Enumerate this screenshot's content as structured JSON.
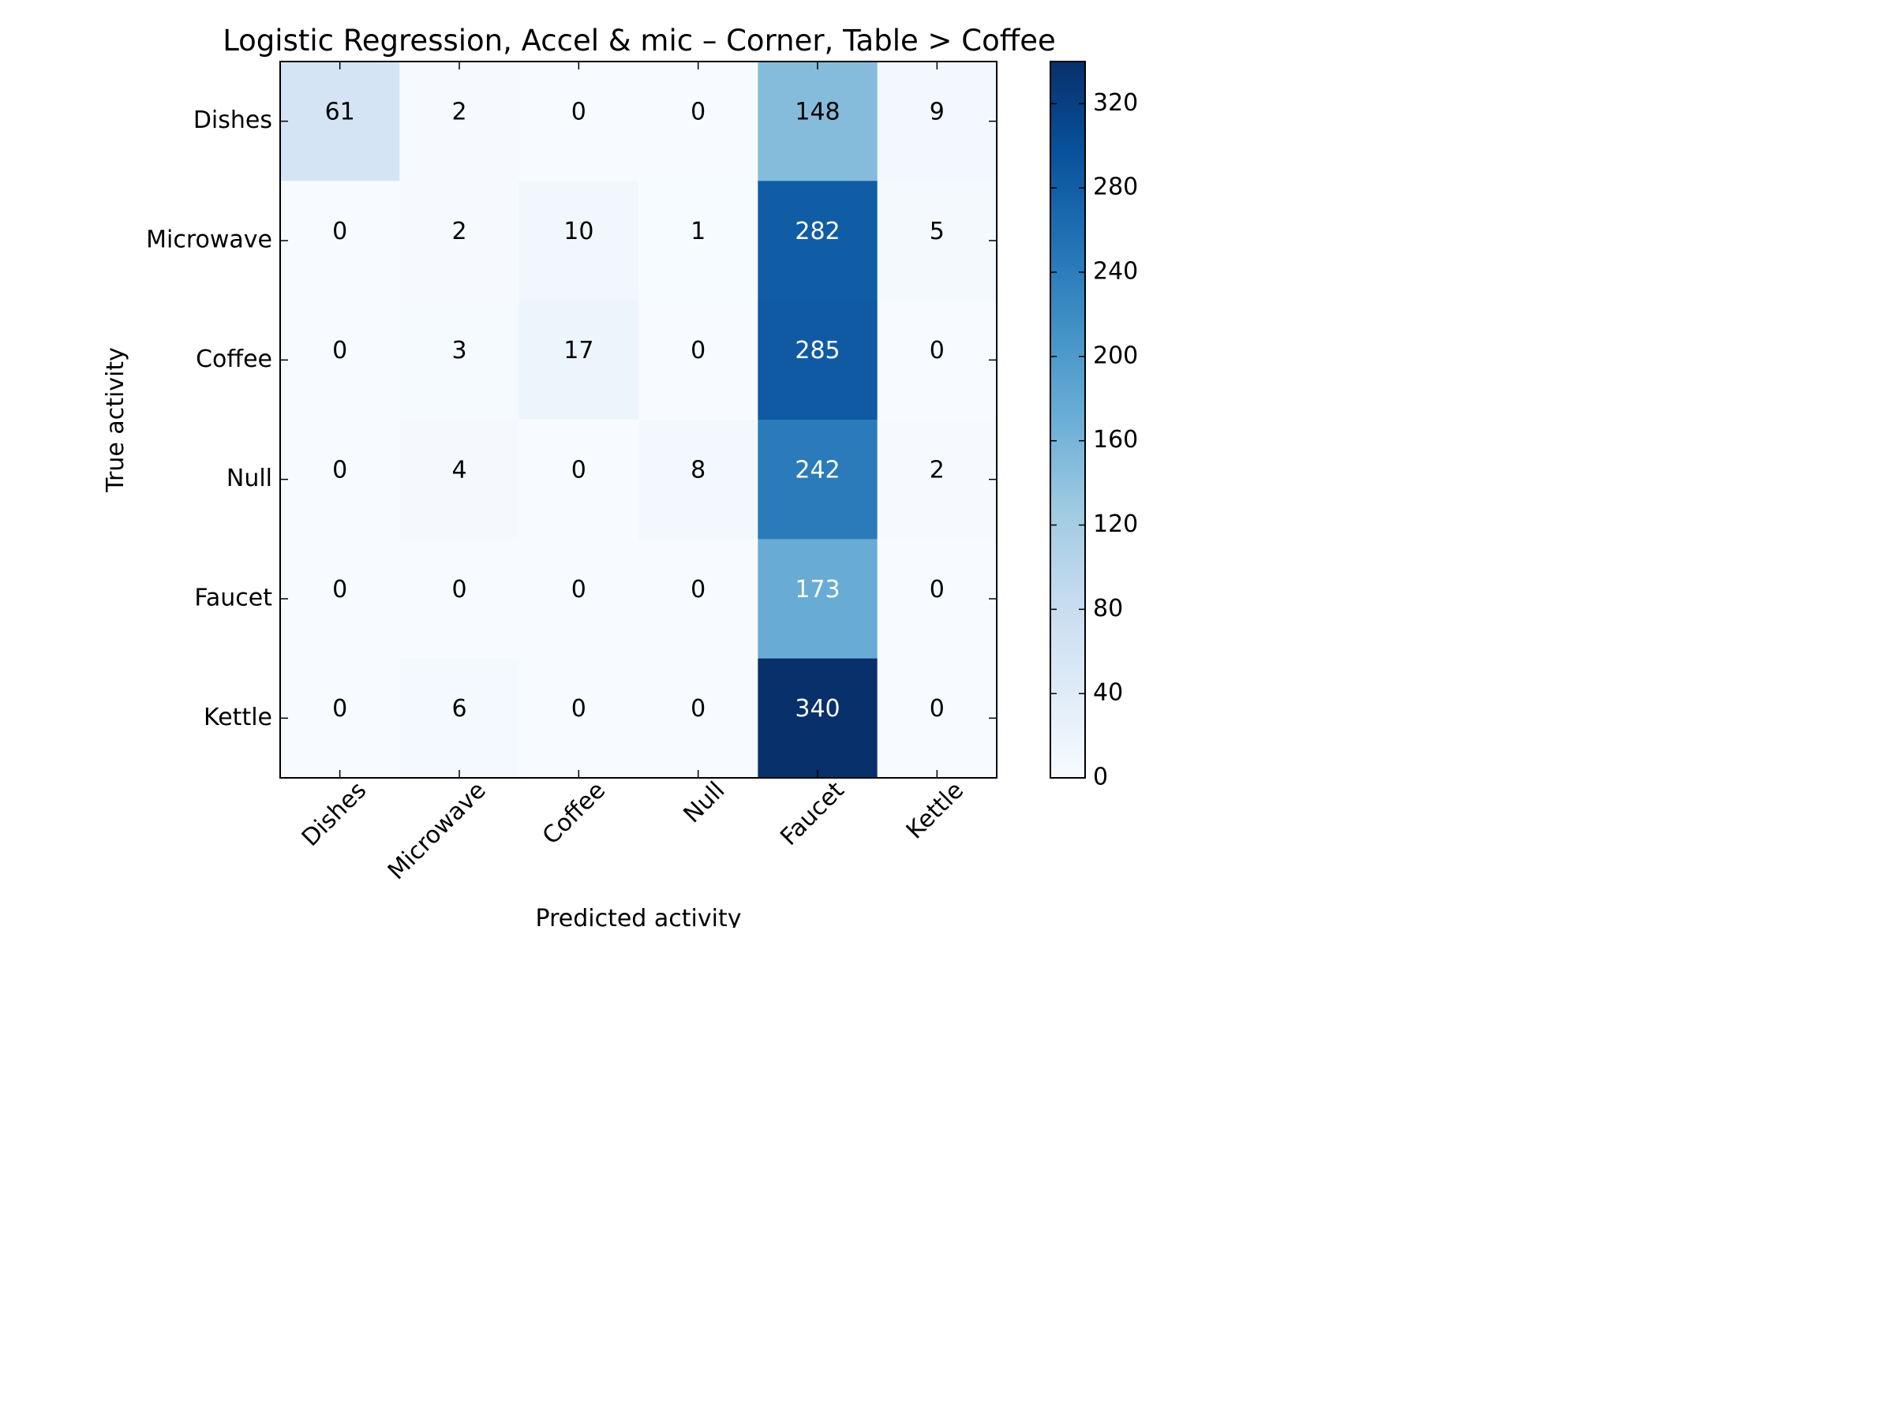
{
  "chart_data": {
    "type": "heatmap",
    "title": "Logistic Regression, Accel & mic – Corner, Table > Coffee",
    "xlabel": "Predicted activity",
    "ylabel": "True activity",
    "x_categories": [
      "Dishes",
      "Microwave",
      "Coffee",
      "Null",
      "Faucet",
      "Kettle"
    ],
    "y_categories": [
      "Dishes",
      "Microwave",
      "Coffee",
      "Null",
      "Faucet",
      "Kettle"
    ],
    "matrix": [
      [
        61,
        2,
        0,
        0,
        148,
        9
      ],
      [
        0,
        2,
        10,
        1,
        282,
        5
      ],
      [
        0,
        3,
        17,
        0,
        285,
        0
      ],
      [
        0,
        4,
        0,
        8,
        242,
        2
      ],
      [
        0,
        0,
        0,
        0,
        173,
        0
      ],
      [
        0,
        6,
        0,
        0,
        340,
        0
      ]
    ],
    "colormap": "Blues",
    "color_min": "#f7fbff",
    "color_max": "#08306b",
    "value_range": [
      0,
      340
    ],
    "colorbar_ticks": [
      0,
      40,
      80,
      120,
      160,
      200,
      240,
      280,
      320
    ],
    "text_color_dark": "#000000",
    "text_color_light": "#ffffff",
    "grid": false
  }
}
